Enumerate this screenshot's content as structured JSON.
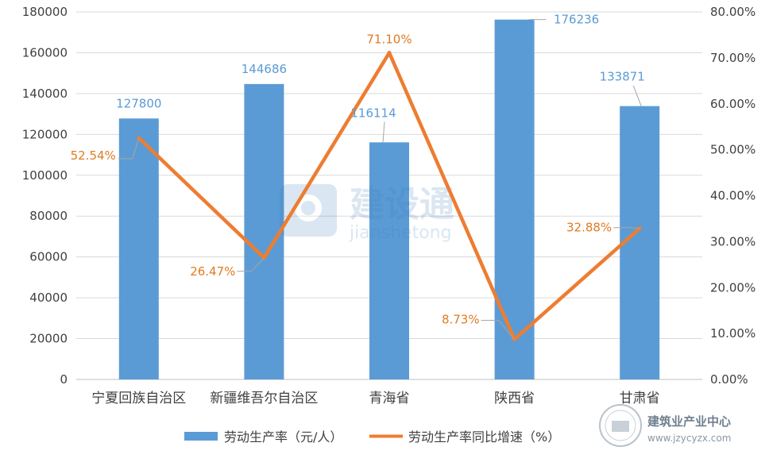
{
  "chart_data": {
    "type": "bar",
    "categories": [
      "宁夏回族自治区",
      "新疆维吾尔自治区",
      "青海省",
      "陕西省",
      "甘肃省"
    ],
    "series": [
      {
        "name": "劳动生产率（元/人）",
        "type": "bar",
        "axis": "left",
        "values": [
          127800,
          144686,
          116114,
          176236,
          133871
        ],
        "labels": [
          "127800",
          "144686",
          "116114",
          "176236",
          "133871"
        ]
      },
      {
        "name": "劳动生产率同比增速（%）",
        "type": "line",
        "axis": "right",
        "values": [
          52.54,
          26.47,
          71.1,
          8.73,
          32.88
        ],
        "labels": [
          "52.54%",
          "26.47%",
          "71.10%",
          "8.73%",
          "32.88%"
        ]
      }
    ],
    "y_left": {
      "lim": [
        0,
        180000
      ],
      "ticks": [
        0,
        20000,
        40000,
        60000,
        80000,
        100000,
        120000,
        140000,
        160000,
        180000
      ],
      "tick_labels": [
        "0",
        "20000",
        "40000",
        "60000",
        "80000",
        "100000",
        "120000",
        "140000",
        "160000",
        "180000"
      ]
    },
    "y_right": {
      "lim": [
        0,
        80
      ],
      "ticks": [
        0,
        10,
        20,
        30,
        40,
        50,
        60,
        70,
        80
      ],
      "tick_labels": [
        "0.00%",
        "10.00%",
        "20.00%",
        "30.00%",
        "40.00%",
        "50.00%",
        "60.00%",
        "70.00%",
        "80.00%"
      ]
    },
    "grid": true,
    "legend": "bottom",
    "colors": {
      "bar": "#5b9bd5",
      "line": "#ed7d31",
      "line_label": "#e07b22",
      "grid": "#d9d9d9",
      "text": "#404040"
    }
  },
  "watermark": {
    "text": "建设通",
    "subtext": "jianshetong"
  },
  "badge": {
    "name": "建筑业产业中心",
    "url": "www.jzycyzx.com"
  }
}
